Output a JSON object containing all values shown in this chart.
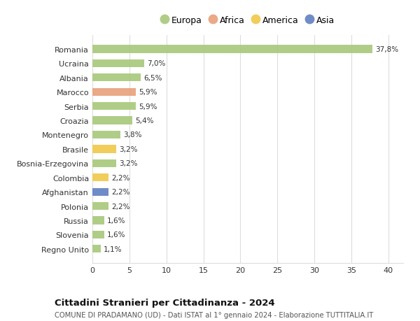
{
  "countries": [
    "Romania",
    "Ucraina",
    "Albania",
    "Marocco",
    "Serbia",
    "Croazia",
    "Montenegro",
    "Brasile",
    "Bosnia-Erzegovina",
    "Colombia",
    "Afghanistan",
    "Polonia",
    "Russia",
    "Slovenia",
    "Regno Unito"
  ],
  "values": [
    37.8,
    7.0,
    6.5,
    5.9,
    5.9,
    5.4,
    3.8,
    3.2,
    3.2,
    2.2,
    2.2,
    2.2,
    1.6,
    1.6,
    1.1
  ],
  "labels": [
    "37,8%",
    "7,0%",
    "6,5%",
    "5,9%",
    "5,9%",
    "5,4%",
    "3,8%",
    "3,2%",
    "3,2%",
    "2,2%",
    "2,2%",
    "2,2%",
    "1,6%",
    "1,6%",
    "1,1%"
  ],
  "continents": [
    "Europa",
    "Europa",
    "Europa",
    "Africa",
    "Europa",
    "Europa",
    "Europa",
    "America",
    "Europa",
    "America",
    "Asia",
    "Europa",
    "Europa",
    "Europa",
    "Europa"
  ],
  "continent_colors": {
    "Europa": "#a8c87a",
    "Africa": "#e8a07a",
    "America": "#f0c84a",
    "Asia": "#6080c0"
  },
  "legend_order": [
    "Europa",
    "Africa",
    "America",
    "Asia"
  ],
  "title": "Cittadini Stranieri per Cittadinanza - 2024",
  "subtitle": "COMUNE DI PRADAMANO (UD) - Dati ISTAT al 1° gennaio 2024 - Elaborazione TUTTITALIA.IT",
  "xlim": [
    0,
    42
  ],
  "xticks": [
    0,
    5,
    10,
    15,
    20,
    25,
    30,
    35,
    40
  ],
  "background_color": "#ffffff",
  "grid_color": "#dddddd"
}
